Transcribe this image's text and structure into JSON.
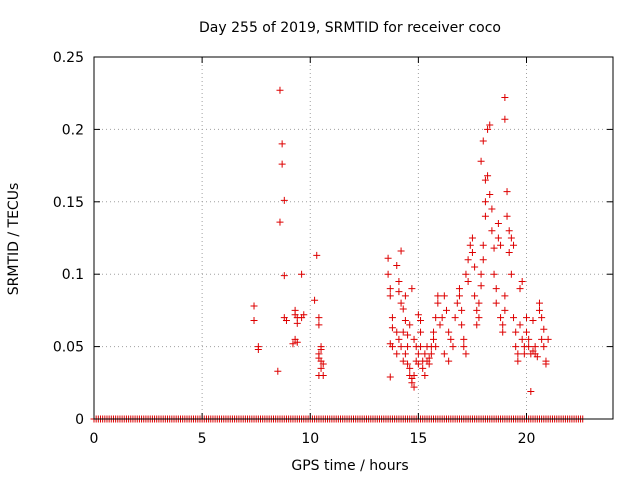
{
  "chart_data": {
    "type": "scatter",
    "title": "Day 255 of 2019, SRMTID for receiver coco",
    "xlabel": "GPS time / hours",
    "ylabel": "SRMTID / TECUs",
    "xlim": [
      0,
      24
    ],
    "ylim": [
      0,
      0.25
    ],
    "x_ticks": [
      0,
      5,
      10,
      15,
      20
    ],
    "y_ticks": [
      0,
      0.05,
      0.1,
      0.15,
      0.2,
      0.25
    ],
    "x_tick_labels": [
      "0",
      "5",
      "10",
      "15",
      "20"
    ],
    "y_tick_labels": [
      "0",
      "0.05",
      "0.1",
      "0.15",
      "0.2",
      "0.25"
    ],
    "grid": true,
    "legend": "none",
    "marker": "+",
    "colors": {
      "series": "#dd0000",
      "grid": "#a0a0a0",
      "axis": "#000000",
      "background": "#ffffff"
    },
    "series": [
      {
        "name": "SRMTID",
        "points": [
          [
            7.4,
            0.078
          ],
          [
            7.4,
            0.068
          ],
          [
            7.6,
            0.05
          ],
          [
            7.6,
            0.048
          ],
          [
            8.5,
            0.033
          ],
          [
            8.6,
            0.227
          ],
          [
            8.7,
            0.19
          ],
          [
            8.7,
            0.176
          ],
          [
            8.8,
            0.151
          ],
          [
            8.6,
            0.136
          ],
          [
            8.8,
            0.099
          ],
          [
            8.8,
            0.07
          ],
          [
            8.9,
            0.068
          ],
          [
            9.3,
            0.075
          ],
          [
            9.3,
            0.072
          ],
          [
            9.4,
            0.07
          ],
          [
            9.4,
            0.066
          ],
          [
            9.3,
            0.055
          ],
          [
            9.4,
            0.053
          ],
          [
            9.2,
            0.052
          ],
          [
            9.6,
            0.1
          ],
          [
            9.7,
            0.072
          ],
          [
            9.6,
            0.07
          ],
          [
            10.3,
            0.113
          ],
          [
            10.2,
            0.082
          ],
          [
            10.4,
            0.07
          ],
          [
            10.4,
            0.065
          ],
          [
            10.5,
            0.05
          ],
          [
            10.5,
            0.048
          ],
          [
            10.4,
            0.045
          ],
          [
            10.4,
            0.042
          ],
          [
            10.5,
            0.04
          ],
          [
            10.6,
            0.038
          ],
          [
            10.5,
            0.035
          ],
          [
            10.4,
            0.03
          ],
          [
            10.6,
            0.03
          ],
          [
            13.6,
            0.111
          ],
          [
            13.6,
            0.1
          ],
          [
            13.7,
            0.09
          ],
          [
            13.7,
            0.085
          ],
          [
            13.8,
            0.07
          ],
          [
            13.8,
            0.063
          ],
          [
            13.7,
            0.052
          ],
          [
            13.8,
            0.05
          ],
          [
            13.7,
            0.029
          ],
          [
            14.0,
            0.106
          ],
          [
            14.1,
            0.095
          ],
          [
            14.1,
            0.088
          ],
          [
            14.2,
            0.116
          ],
          [
            14.2,
            0.08
          ],
          [
            14.3,
            0.076
          ],
          [
            14.3,
            0.06
          ],
          [
            14.0,
            0.06
          ],
          [
            14.1,
            0.055
          ],
          [
            14.2,
            0.05
          ],
          [
            14.0,
            0.045
          ],
          [
            14.3,
            0.04
          ],
          [
            14.4,
            0.085
          ],
          [
            14.4,
            0.068
          ],
          [
            14.5,
            0.058
          ],
          [
            14.5,
            0.05
          ],
          [
            14.4,
            0.045
          ],
          [
            14.5,
            0.038
          ],
          [
            14.6,
            0.035
          ],
          [
            14.6,
            0.03
          ],
          [
            14.7,
            0.028
          ],
          [
            14.7,
            0.025
          ],
          [
            14.8,
            0.022
          ],
          [
            14.8,
            0.03
          ],
          [
            14.6,
            0.065
          ],
          [
            14.7,
            0.09
          ],
          [
            14.8,
            0.055
          ],
          [
            14.9,
            0.05
          ],
          [
            14.9,
            0.04
          ],
          [
            15.0,
            0.038
          ],
          [
            15.0,
            0.045
          ],
          [
            15.1,
            0.06
          ],
          [
            15.1,
            0.05
          ],
          [
            15.2,
            0.04
          ],
          [
            15.2,
            0.035
          ],
          [
            15.3,
            0.045
          ],
          [
            15.3,
            0.03
          ],
          [
            15.4,
            0.05
          ],
          [
            15.4,
            0.04
          ],
          [
            15.5,
            0.042
          ],
          [
            15.5,
            0.038
          ],
          [
            15.6,
            0.05
          ],
          [
            15.6,
            0.045
          ],
          [
            15.7,
            0.06
          ],
          [
            15.7,
            0.055
          ],
          [
            15.8,
            0.07
          ],
          [
            15.8,
            0.05
          ],
          [
            15.9,
            0.085
          ],
          [
            15.9,
            0.08
          ],
          [
            15.0,
            0.072
          ],
          [
            15.1,
            0.068
          ],
          [
            16.0,
            0.065
          ],
          [
            16.1,
            0.07
          ],
          [
            16.2,
            0.085
          ],
          [
            16.3,
            0.075
          ],
          [
            16.4,
            0.06
          ],
          [
            16.5,
            0.055
          ],
          [
            16.6,
            0.05
          ],
          [
            16.2,
            0.045
          ],
          [
            16.4,
            0.04
          ],
          [
            16.7,
            0.07
          ],
          [
            16.8,
            0.08
          ],
          [
            16.9,
            0.09
          ],
          [
            16.9,
            0.085
          ],
          [
            17.0,
            0.075
          ],
          [
            17.0,
            0.065
          ],
          [
            17.1,
            0.055
          ],
          [
            17.1,
            0.05
          ],
          [
            17.2,
            0.045
          ],
          [
            17.2,
            0.1
          ],
          [
            17.3,
            0.095
          ],
          [
            17.3,
            0.11
          ],
          [
            17.4,
            0.12
          ],
          [
            17.5,
            0.115
          ],
          [
            17.5,
            0.125
          ],
          [
            17.6,
            0.105
          ],
          [
            17.6,
            0.085
          ],
          [
            17.7,
            0.075
          ],
          [
            17.7,
            0.065
          ],
          [
            17.8,
            0.07
          ],
          [
            17.8,
            0.08
          ],
          [
            17.9,
            0.092
          ],
          [
            17.9,
            0.1
          ],
          [
            18.0,
            0.11
          ],
          [
            18.0,
            0.12
          ],
          [
            18.1,
            0.14
          ],
          [
            18.1,
            0.15
          ],
          [
            17.9,
            0.178
          ],
          [
            18.0,
            0.192
          ],
          [
            18.1,
            0.165
          ],
          [
            18.2,
            0.2
          ],
          [
            18.3,
            0.203
          ],
          [
            18.2,
            0.168
          ],
          [
            18.3,
            0.155
          ],
          [
            18.4,
            0.145
          ],
          [
            18.4,
            0.13
          ],
          [
            18.5,
            0.118
          ],
          [
            18.5,
            0.1
          ],
          [
            18.6,
            0.09
          ],
          [
            18.6,
            0.08
          ],
          [
            18.7,
            0.125
          ],
          [
            18.7,
            0.135
          ],
          [
            18.8,
            0.12
          ],
          [
            18.8,
            0.07
          ],
          [
            18.9,
            0.065
          ],
          [
            18.9,
            0.06
          ],
          [
            19.0,
            0.075
          ],
          [
            19.0,
            0.085
          ],
          [
            19.0,
            0.222
          ],
          [
            19.0,
            0.207
          ],
          [
            19.1,
            0.157
          ],
          [
            19.1,
            0.14
          ],
          [
            19.2,
            0.13
          ],
          [
            19.2,
            0.115
          ],
          [
            19.3,
            0.1
          ],
          [
            19.3,
            0.125
          ],
          [
            19.4,
            0.12
          ],
          [
            19.4,
            0.07
          ],
          [
            19.5,
            0.06
          ],
          [
            19.5,
            0.05
          ],
          [
            19.6,
            0.045
          ],
          [
            19.6,
            0.04
          ],
          [
            19.7,
            0.065
          ],
          [
            19.7,
            0.09
          ],
          [
            19.8,
            0.095
          ],
          [
            19.8,
            0.055
          ],
          [
            19.9,
            0.05
          ],
          [
            19.9,
            0.045
          ],
          [
            20.0,
            0.07
          ],
          [
            20.0,
            0.06
          ],
          [
            20.1,
            0.055
          ],
          [
            20.1,
            0.05
          ],
          [
            20.2,
            0.045
          ],
          [
            20.2,
            0.019
          ],
          [
            20.3,
            0.068
          ],
          [
            20.3,
            0.047
          ],
          [
            20.4,
            0.045
          ],
          [
            20.4,
            0.05
          ],
          [
            20.5,
            0.043
          ],
          [
            20.6,
            0.08
          ],
          [
            20.6,
            0.075
          ],
          [
            20.7,
            0.07
          ],
          [
            20.7,
            0.055
          ],
          [
            20.8,
            0.062
          ],
          [
            20.8,
            0.05
          ],
          [
            20.9,
            0.04
          ],
          [
            20.9,
            0.038
          ],
          [
            21.0,
            0.055
          ]
        ],
        "zero_run": {
          "y": 0,
          "x_start": 0.0,
          "x_end": 22.6,
          "step": 0.1
        }
      }
    ]
  }
}
